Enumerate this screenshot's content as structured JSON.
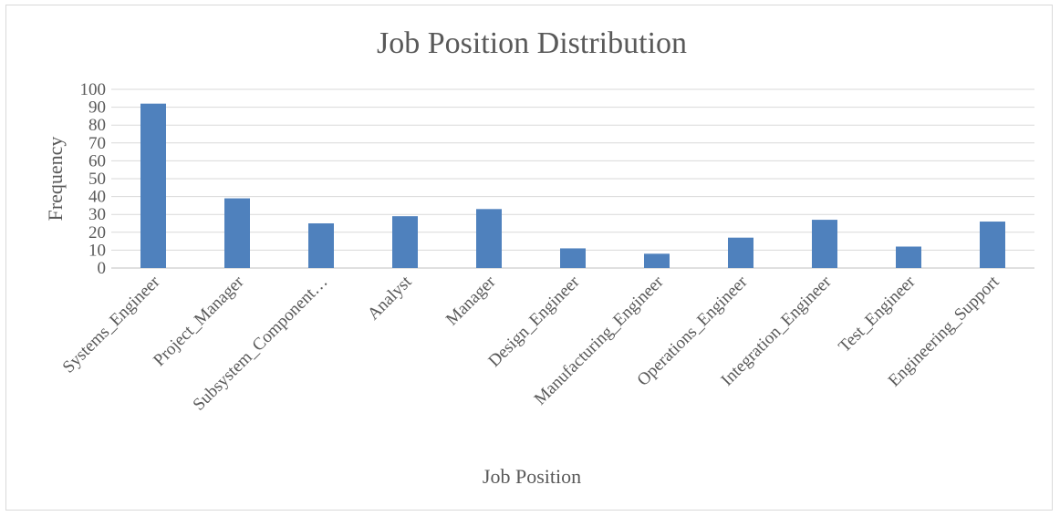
{
  "chart_data": {
    "type": "bar",
    "title": "Job Position Distribution",
    "xlabel": "Job Position",
    "ylabel": "Frequency",
    "categories": [
      "Systems_Engineer",
      "Project_Manager",
      "Subsystem_Component…",
      "Analyst",
      "Manager",
      "Design_Engineer",
      "Manufacturing_Engineer",
      "Operations_Engineer",
      "Integration_Engineer",
      "Test_Engineer",
      "Engineering_Support"
    ],
    "values": [
      92,
      39,
      25,
      29,
      33,
      11,
      8,
      17,
      27,
      12,
      26
    ],
    "ylim": [
      0,
      100
    ],
    "yticks": [
      "0",
      "10",
      "20",
      "30",
      "40",
      "50",
      "60",
      "70",
      "80",
      "90",
      "100"
    ],
    "grid": true,
    "legend": "none",
    "bar_color": "#4f81bd"
  }
}
